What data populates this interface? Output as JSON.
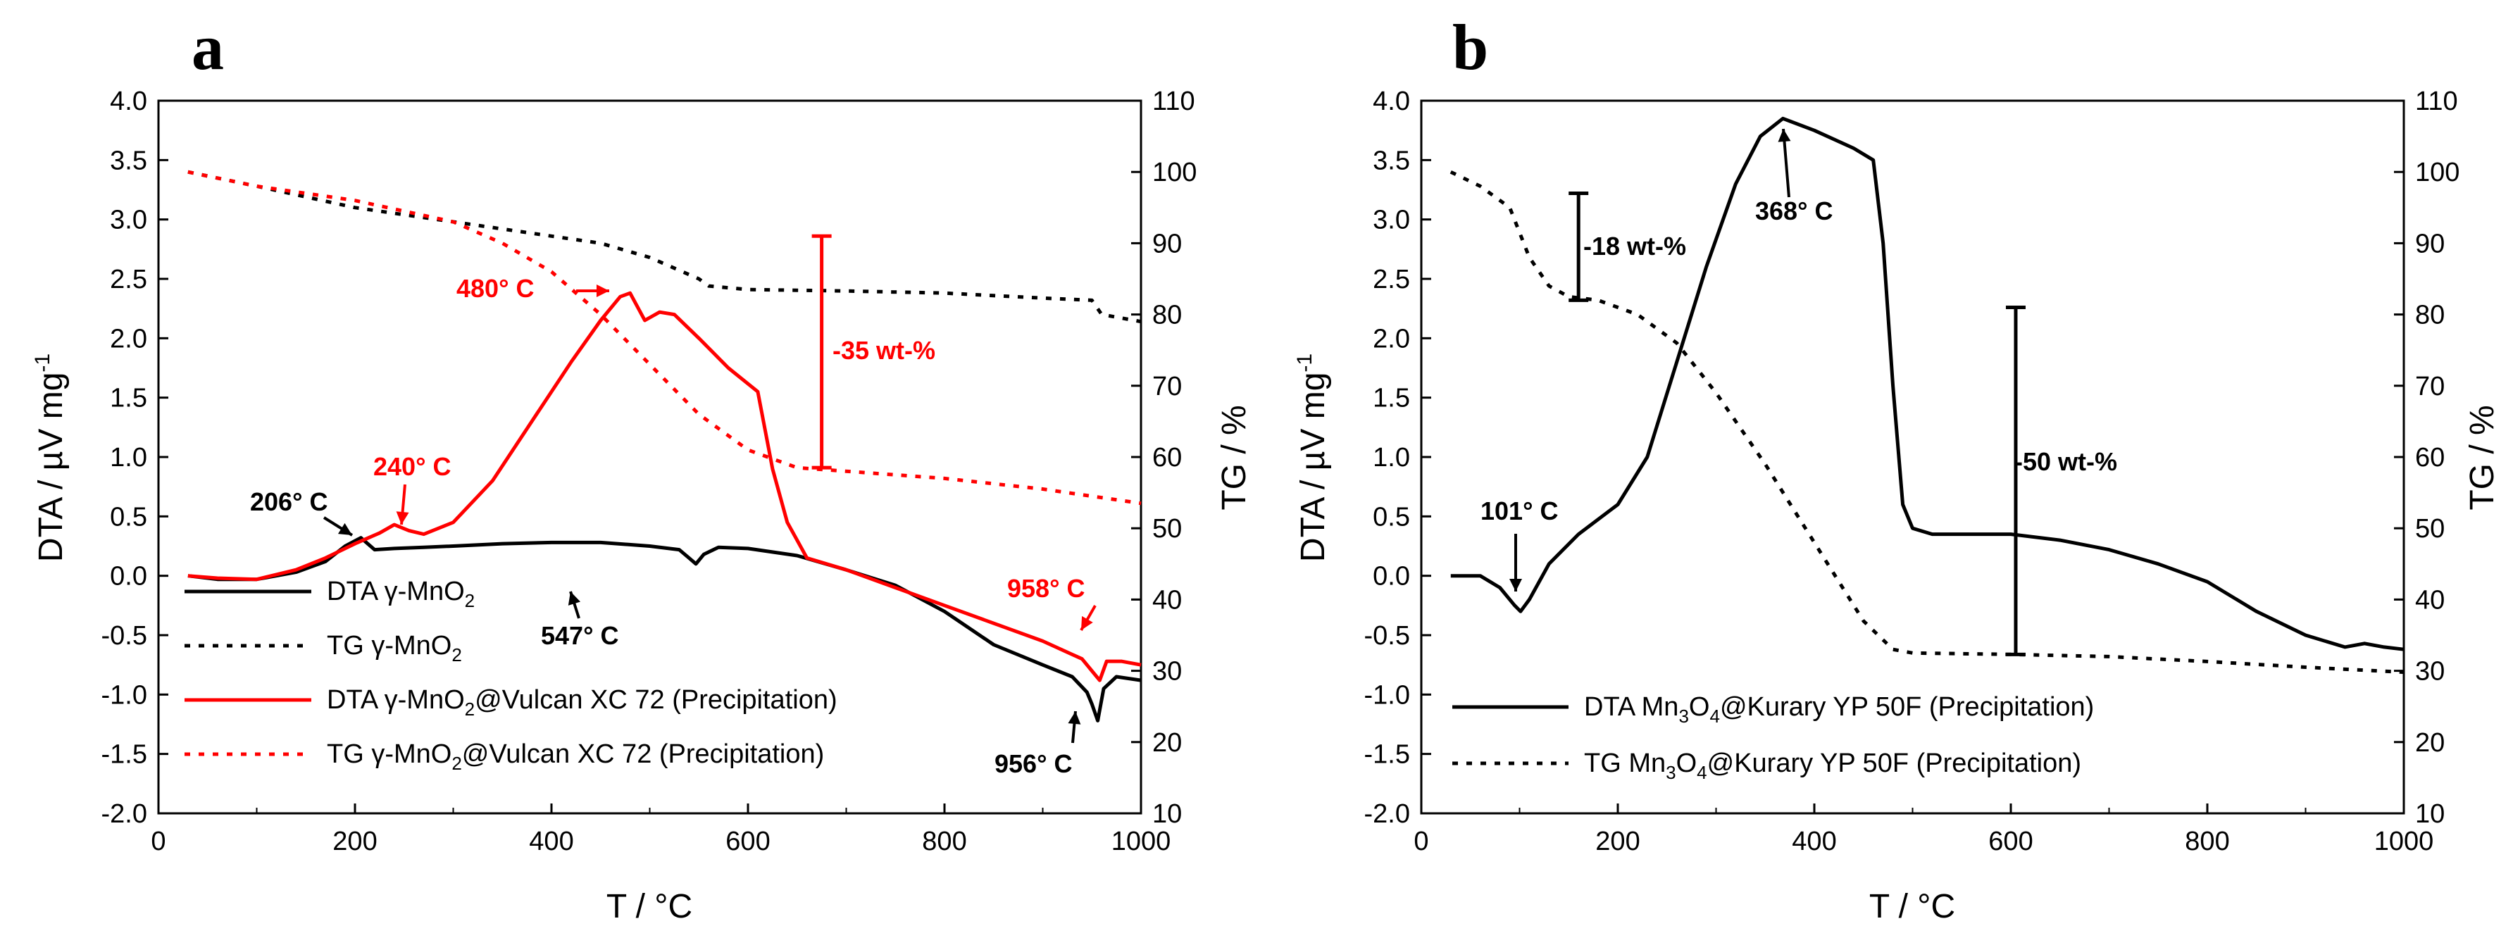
{
  "chart_data": [
    {
      "panel": "a",
      "type": "line",
      "xlabel": "T / °C",
      "ylabel": "DTA / µV mg",
      "ylabel_sup": "-1",
      "y2label": "TG / %",
      "xlim": [
        0,
        1000
      ],
      "ylim": [
        -2.0,
        4.0
      ],
      "y2lim": [
        10,
        110
      ],
      "xticks": [
        "0",
        "200",
        "400",
        "600",
        "800",
        "1000"
      ],
      "xtick_values": [
        0,
        200,
        400,
        600,
        800,
        1000
      ],
      "yticks": [
        "-2.0",
        "-1.5",
        "-1.0",
        "-0.5",
        "0.0",
        "0.5",
        "1.0",
        "1.5",
        "2.0",
        "2.5",
        "3.0",
        "3.5",
        "4.0"
      ],
      "ytick_values": [
        -2.0,
        -1.5,
        -1.0,
        -0.5,
        0.0,
        0.5,
        1.0,
        1.5,
        2.0,
        2.5,
        3.0,
        3.5,
        4.0
      ],
      "y2ticks": [
        "10",
        "20",
        "30",
        "40",
        "50",
        "60",
        "70",
        "80",
        "90",
        "100",
        "110"
      ],
      "y2tick_values": [
        10,
        20,
        30,
        40,
        50,
        60,
        70,
        80,
        90,
        100,
        110
      ],
      "series": [
        {
          "name": "DTA γ-MnO₂",
          "label_parts": [
            "DTA γ-MnO",
            "2",
            ""
          ],
          "axis": "left",
          "color": "#000000",
          "dash": "solid",
          "x": [
            30,
            60,
            100,
            140,
            170,
            190,
            206,
            220,
            240,
            270,
            300,
            350,
            400,
            450,
            500,
            530,
            540,
            547,
            555,
            570,
            600,
            650,
            700,
            750,
            800,
            850,
            900,
            930,
            945,
            950,
            956,
            962,
            975,
            1000
          ],
          "y": [
            0.0,
            -0.03,
            -0.03,
            0.03,
            0.12,
            0.25,
            0.32,
            0.22,
            0.23,
            0.24,
            0.25,
            0.27,
            0.28,
            0.28,
            0.25,
            0.22,
            0.15,
            0.1,
            0.18,
            0.24,
            0.23,
            0.17,
            0.05,
            -0.08,
            -0.3,
            -0.58,
            -0.75,
            -0.85,
            -0.98,
            -1.08,
            -1.22,
            -0.95,
            -0.85,
            -0.88
          ]
        },
        {
          "name": "TG γ-MnO₂",
          "label_parts": [
            "TG γ-MnO",
            "2",
            ""
          ],
          "axis": "right",
          "color": "#000000",
          "dash": "dot",
          "x": [
            30,
            100,
            200,
            300,
            400,
            450,
            500,
            550,
            560,
            600,
            700,
            800,
            900,
            950,
            960,
            1000
          ],
          "y": [
            100,
            98,
            95,
            93,
            91,
            90,
            88,
            85,
            84,
            83.5,
            83.3,
            83,
            82.3,
            82,
            80,
            79
          ]
        },
        {
          "name": "DTA γ-MnO₂@Vulcan XC 72 (Precipitation)",
          "label_parts": [
            "DTA γ-MnO",
            "2",
            "@Vulcan XC 72 (Precipitation)"
          ],
          "axis": "left",
          "color": "#ff0000",
          "dash": "solid",
          "x": [
            30,
            60,
            100,
            140,
            170,
            200,
            225,
            240,
            255,
            270,
            300,
            340,
            380,
            420,
            450,
            470,
            480,
            495,
            510,
            525,
            550,
            580,
            610,
            625,
            640,
            660,
            700,
            750,
            800,
            850,
            900,
            940,
            952,
            958,
            965,
            980,
            1000
          ],
          "y": [
            0.0,
            -0.02,
            -0.03,
            0.05,
            0.15,
            0.27,
            0.36,
            0.43,
            0.38,
            0.35,
            0.45,
            0.8,
            1.3,
            1.8,
            2.15,
            2.35,
            2.38,
            2.15,
            2.22,
            2.2,
            2.0,
            1.75,
            1.55,
            0.9,
            0.45,
            0.15,
            0.05,
            -0.1,
            -0.25,
            -0.4,
            -0.55,
            -0.7,
            -0.82,
            -0.88,
            -0.72,
            -0.72,
            -0.75
          ]
        },
        {
          "name": "TG γ-MnO₂@Vulcan XC 72 (Precipitation)",
          "label_parts": [
            "TG γ-MnO",
            "2",
            "@Vulcan XC 72 (Precipitation)"
          ],
          "axis": "right",
          "color": "#ff0000",
          "dash": "dot",
          "x": [
            30,
            100,
            200,
            300,
            350,
            400,
            450,
            500,
            550,
            600,
            650,
            700,
            800,
            900,
            1000
          ],
          "y": [
            100,
            98,
            96,
            93,
            90,
            86,
            80,
            73,
            66,
            61,
            58.5,
            58,
            57,
            55.5,
            53.5
          ]
        }
      ],
      "annotations": [
        {
          "text": "206° C",
          "color": "#000000"
        },
        {
          "text": "240° C",
          "color": "#ff0000"
        },
        {
          "text": "480° C",
          "color": "#ff0000"
        },
        {
          "text": "547° C",
          "color": "#000000"
        },
        {
          "text": "958° C",
          "color": "#ff0000"
        },
        {
          "text": "956° C",
          "color": "#000000"
        },
        {
          "text": "-35 wt-%",
          "color": "#ff0000"
        }
      ],
      "mass_loss_bar": {
        "x": 675,
        "tg_top": 91,
        "tg_bottom": 58.5,
        "color": "#ff0000"
      },
      "legend_position": "bottom-left"
    },
    {
      "panel": "b",
      "type": "line",
      "xlabel": "T / °C",
      "ylabel": "DTA / µV mg",
      "ylabel_sup": "-1",
      "y2label": "TG / %",
      "xlim": [
        0,
        1000
      ],
      "ylim": [
        -2.0,
        4.0
      ],
      "y2lim": [
        10,
        110
      ],
      "xticks": [
        "0",
        "200",
        "400",
        "600",
        "800",
        "1000"
      ],
      "xtick_values": [
        0,
        200,
        400,
        600,
        800,
        1000
      ],
      "yticks": [
        "-2.0",
        "-1.5",
        "-1.0",
        "-0.5",
        "0.0",
        "0.5",
        "1.0",
        "1.5",
        "2.0",
        "2.5",
        "3.0",
        "3.5",
        "4.0"
      ],
      "ytick_values": [
        -2.0,
        -1.5,
        -1.0,
        -0.5,
        0.0,
        0.5,
        1.0,
        1.5,
        2.0,
        2.5,
        3.0,
        3.5,
        4.0
      ],
      "y2ticks": [
        "10",
        "20",
        "30",
        "40",
        "50",
        "60",
        "70",
        "80",
        "90",
        "100",
        "110"
      ],
      "y2tick_values": [
        10,
        20,
        30,
        40,
        50,
        60,
        70,
        80,
        90,
        100,
        110
      ],
      "series": [
        {
          "name": "DTA Mn₃O₄@Kurary YP 50F (Precipitation)",
          "label_parts": [
            "DTA Mn",
            "3",
            "O",
            "4",
            "@Kurary YP 50F (Precipitation)"
          ],
          "axis": "left",
          "color": "#000000",
          "dash": "solid",
          "x": [
            30,
            60,
            80,
            95,
            101,
            110,
            130,
            160,
            200,
            230,
            260,
            290,
            320,
            345,
            368,
            400,
            440,
            460,
            470,
            480,
            490,
            500,
            520,
            600,
            650,
            700,
            750,
            800,
            850,
            900,
            940,
            960,
            980,
            1000
          ],
          "y": [
            0.0,
            0.0,
            -0.1,
            -0.25,
            -0.3,
            -0.2,
            0.1,
            0.35,
            0.6,
            1.0,
            1.8,
            2.6,
            3.3,
            3.7,
            3.85,
            3.75,
            3.6,
            3.5,
            2.8,
            1.6,
            0.6,
            0.4,
            0.35,
            0.35,
            0.3,
            0.22,
            0.1,
            -0.05,
            -0.3,
            -0.5,
            -0.6,
            -0.57,
            -0.6,
            -0.62
          ]
        },
        {
          "name": "TG Mn₃O₄@Kurary YP 50F (Precipitation)",
          "label_parts": [
            "TG Mn",
            "3",
            "O",
            "4",
            "@Kurary YP 50F (Precipitation)"
          ],
          "axis": "right",
          "color": "#000000",
          "dash": "dot",
          "x": [
            30,
            60,
            90,
            110,
            130,
            150,
            180,
            220,
            260,
            300,
            350,
            400,
            450,
            480,
            500,
            550,
            600,
            700,
            800,
            900,
            1000
          ],
          "y": [
            100,
            98,
            95,
            88,
            84,
            82.5,
            82,
            80,
            76,
            69,
            59,
            48,
            37,
            33,
            32.5,
            32.4,
            32.3,
            32,
            31.3,
            30.5,
            29.8
          ]
        }
      ],
      "annotations": [
        {
          "text": "101° C",
          "color": "#000000"
        },
        {
          "text": "368° C",
          "color": "#000000"
        },
        {
          "text": "-18 wt-%",
          "color": "#000000"
        },
        {
          "text": "-50 wt-%",
          "color": "#000000"
        }
      ],
      "mass_loss_bars": [
        {
          "x": 160,
          "tg_top": 97,
          "tg_bottom": 82,
          "color": "#000000"
        },
        {
          "x": 605,
          "tg_top": 81,
          "tg_bottom": 32.3,
          "color": "#000000"
        }
      ],
      "legend_position": "bottom-left"
    }
  ]
}
